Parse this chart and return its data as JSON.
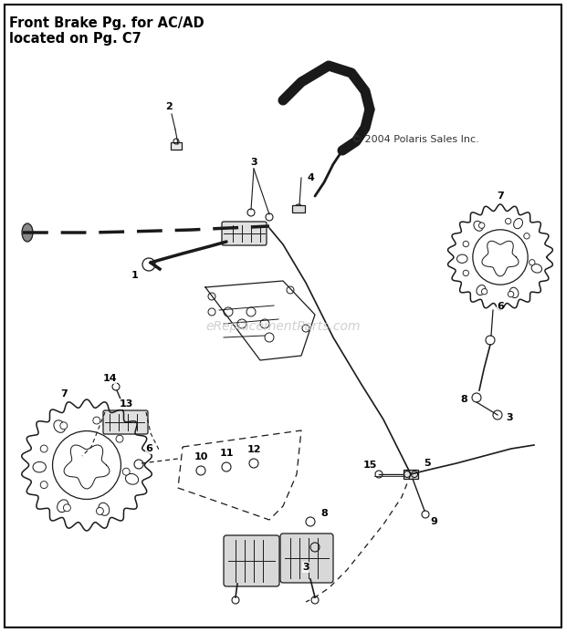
{
  "title_line1": "Front Brake Pg. for AC/AD",
  "title_line2": "located on Pg. C7",
  "copyright": "© 2004 Polaris Sales Inc.",
  "watermark": "eReplacementParts.com",
  "bg_color": "#ffffff",
  "border_color": "#000000",
  "diagram_color": "#1a1a1a",
  "title_fontsize": 10.5,
  "label_fontsize": 8.5,
  "watermark_color": "#c8c8c8",
  "watermark_fontsize": 10,
  "copyright_fontsize": 8
}
